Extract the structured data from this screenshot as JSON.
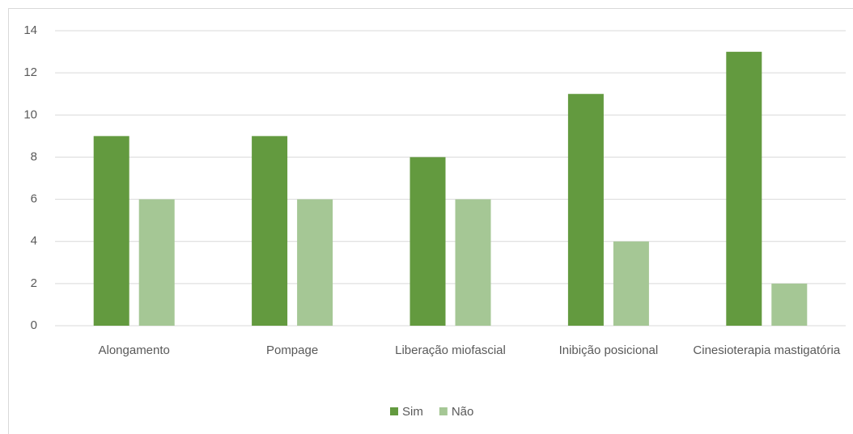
{
  "chart_data": {
    "type": "bar",
    "categories": [
      "Alongamento",
      "Pompage",
      "Liberação miofascial",
      "Inibição posicional",
      "Cinesioterapia mastigatória"
    ],
    "series": [
      {
        "name": "Sim",
        "color": "#639a3f",
        "values": [
          9,
          9,
          8,
          11,
          13
        ]
      },
      {
        "name": "Não",
        "color": "#a5c795",
        "values": [
          6,
          6,
          6,
          4,
          2
        ]
      }
    ],
    "ylim": [
      0,
      14
    ],
    "yticks": [
      0,
      2,
      4,
      6,
      8,
      10,
      12,
      14
    ],
    "grid": true,
    "legend": "bottom"
  }
}
